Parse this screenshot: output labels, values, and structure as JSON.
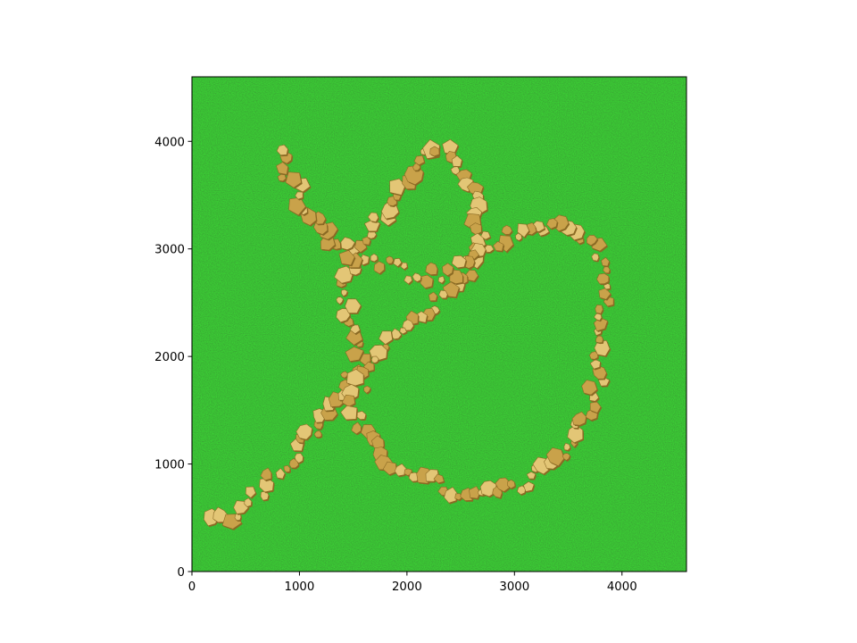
{
  "chart_data": {
    "type": "image",
    "title": "",
    "xlabel": "",
    "ylabel": "",
    "xlim": [
      0,
      4600
    ],
    "ylim": [
      0,
      4600
    ],
    "x_ticks": [
      "0",
      "1000",
      "2000",
      "3000",
      "4000"
    ],
    "y_ticks": [
      "0",
      "1000",
      "2000",
      "3000",
      "4000"
    ],
    "x_tick_values": [
      0,
      1000,
      2000,
      3000,
      4000
    ],
    "y_tick_values": [
      0,
      1000,
      2000,
      3000,
      4000
    ],
    "grid": false,
    "image_description": "Green grass texture with a looping cobblestone path of tan stones",
    "colors": {
      "grass_dark": "#0f4f12",
      "grass": "#1c7a1f",
      "grass_light": "#2f9a2a",
      "stone": "#c9a24a",
      "stone_dark": "#8a6a24",
      "stone_light": "#e3c676"
    }
  }
}
